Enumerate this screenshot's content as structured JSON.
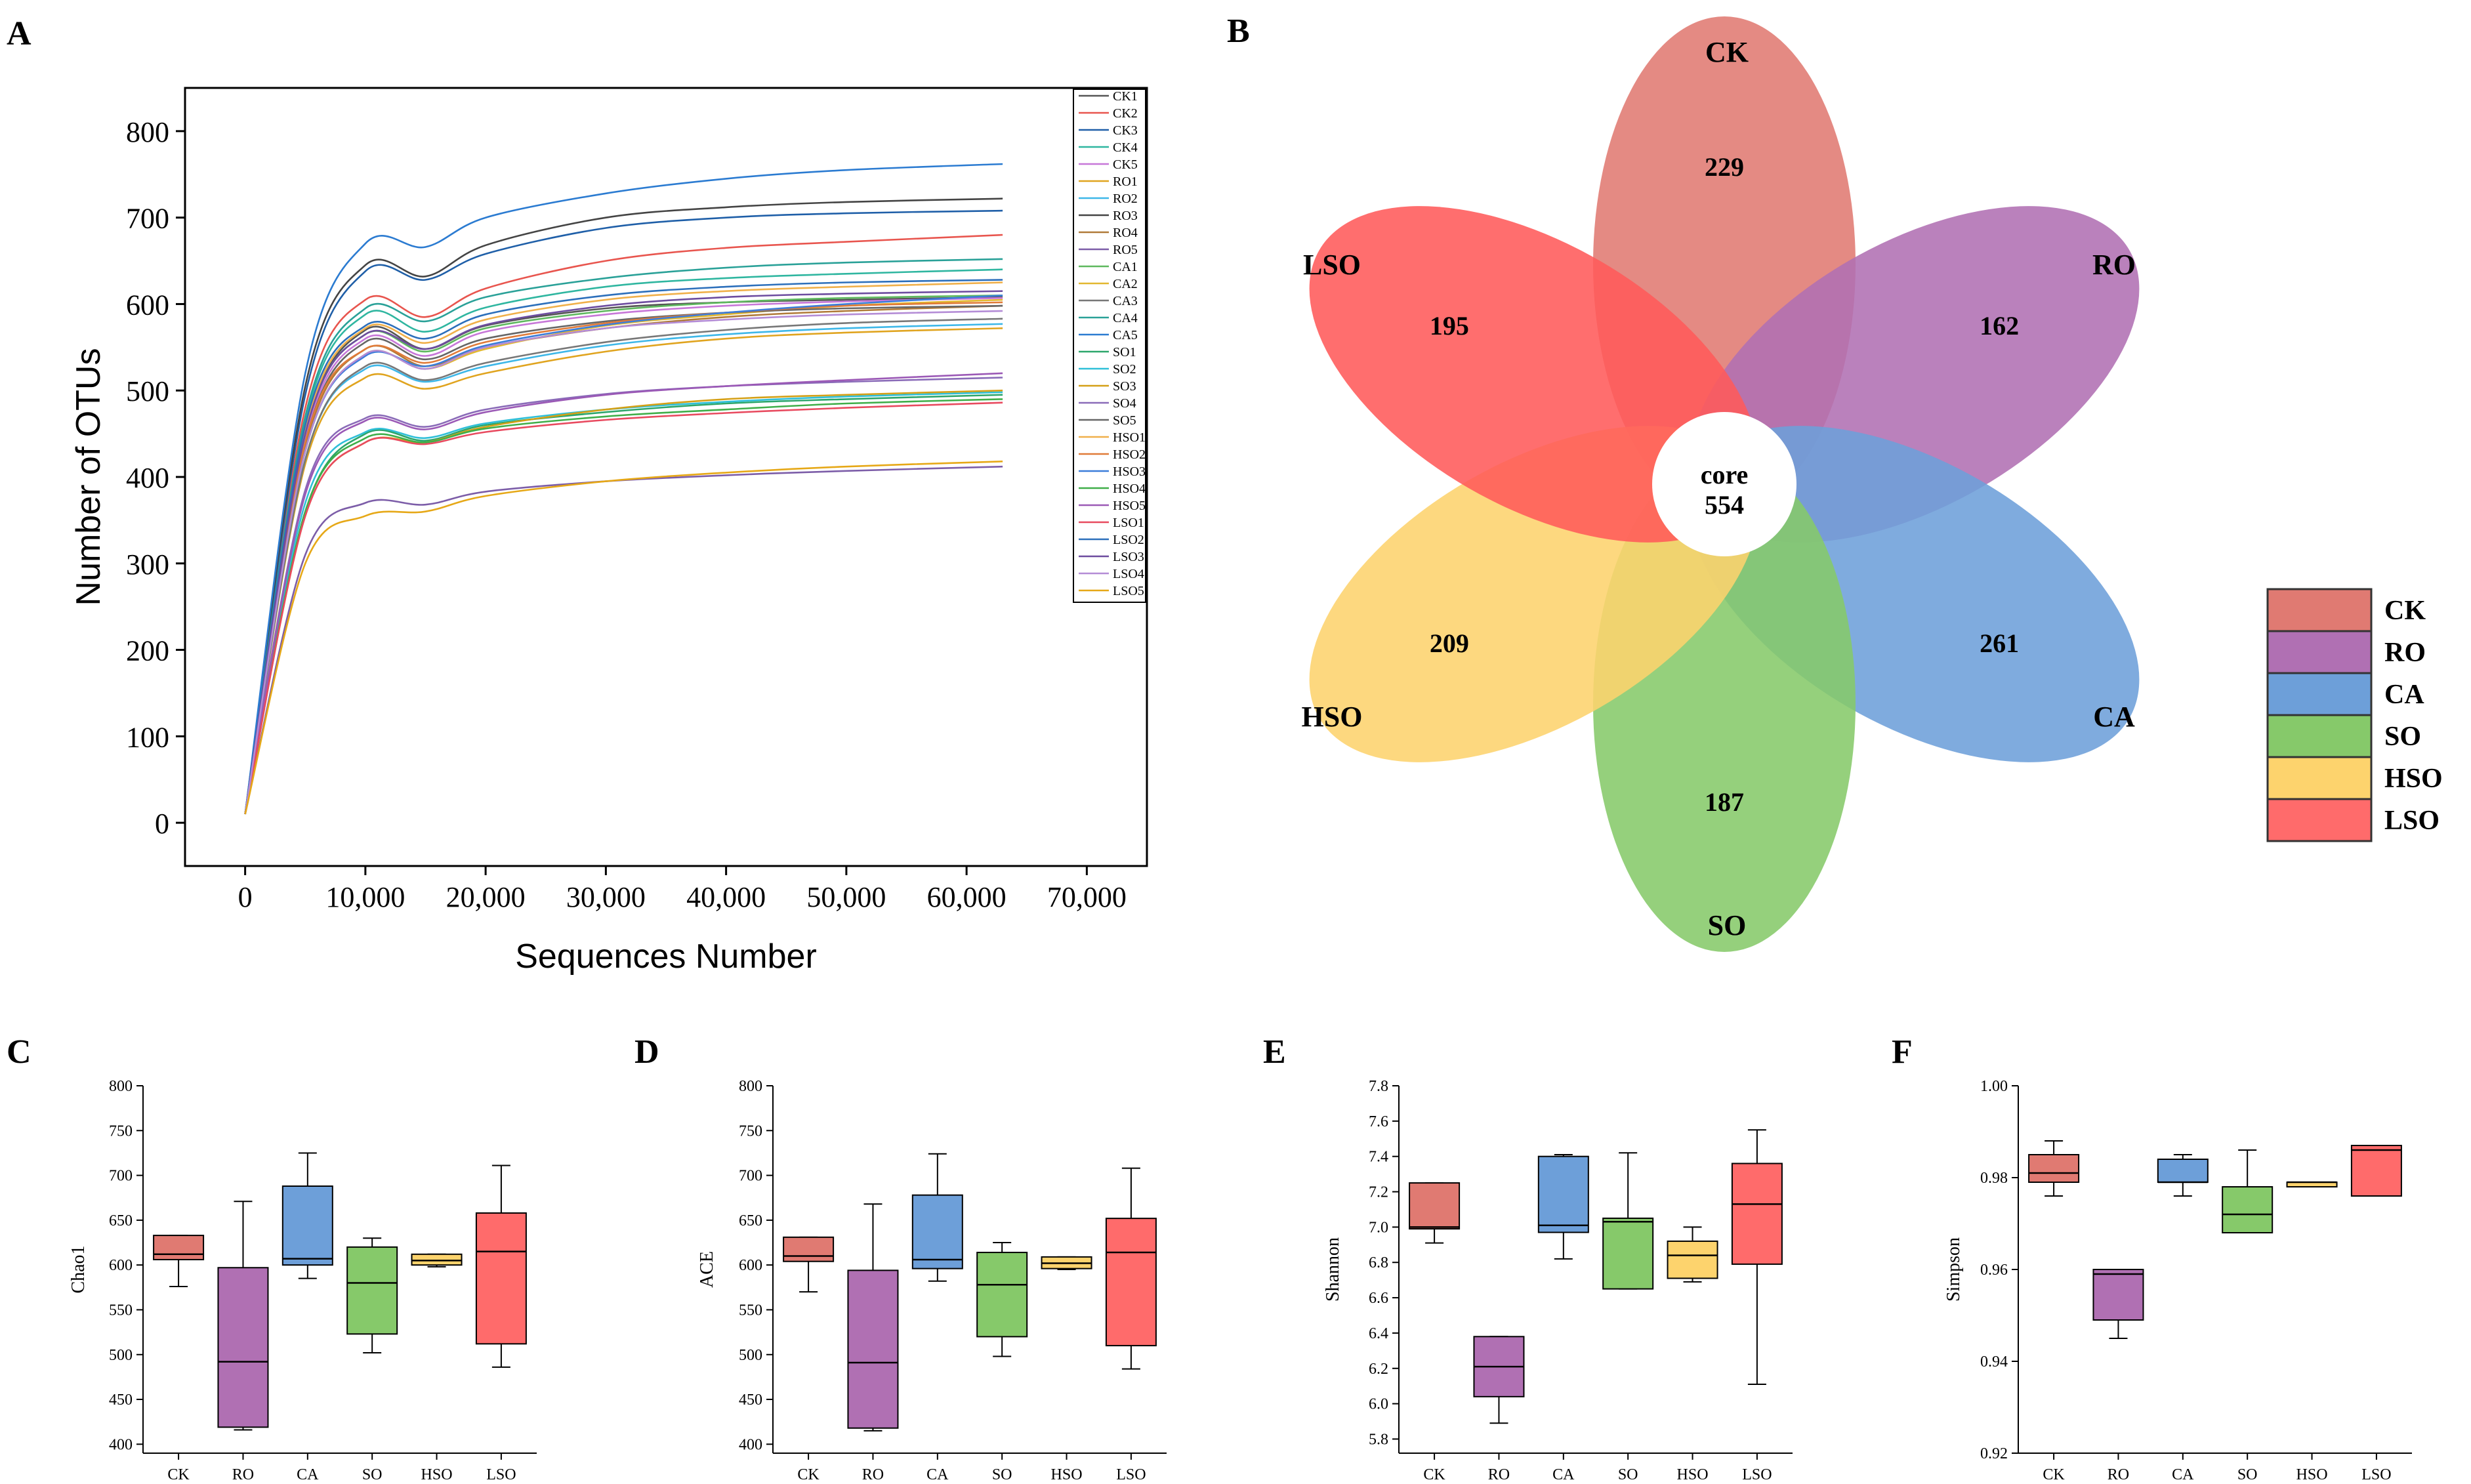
{
  "figure": {
    "panel_labels": [
      "A",
      "B",
      "C",
      "D",
      "E",
      "F"
    ]
  },
  "chart_data": [
    {
      "panel": "A",
      "type": "line",
      "title": "",
      "xlabel": "Sequences Number",
      "ylabel": "Number of OTUs",
      "xlim": [
        -5000,
        75000
      ],
      "ylim": [
        -50,
        850
      ],
      "xticks": [
        0,
        10000,
        20000,
        30000,
        40000,
        50000,
        60000,
        70000
      ],
      "xtick_labels": [
        "0",
        "10,000",
        "20,000",
        "30,000",
        "40,000",
        "50,000",
        "60,000",
        "70,000"
      ],
      "yticks": [
        0,
        100,
        200,
        300,
        400,
        500,
        600,
        700,
        800
      ],
      "ytick_labels": [
        "0",
        "100",
        "200",
        "300",
        "400",
        "500",
        "600",
        "700",
        "800"
      ],
      "legend_position": "top-right",
      "x": [
        0,
        5000,
        10000,
        15000,
        20000,
        30000,
        40000,
        50000,
        63000
      ],
      "series": [
        {
          "name": "CK1",
          "color": "#555555",
          "values": [
            10,
            450,
            570,
            548,
            575,
            595,
            602,
            605,
            608
          ]
        },
        {
          "name": "CK2",
          "color": "#e8554e",
          "values": [
            10,
            480,
            605,
            585,
            618,
            650,
            665,
            672,
            680
          ]
        },
        {
          "name": "CK3",
          "color": "#1f5fa8",
          "values": [
            10,
            495,
            638,
            628,
            658,
            688,
            700,
            705,
            708
          ]
        },
        {
          "name": "CK4",
          "color": "#2fb6a0",
          "values": [
            10,
            465,
            588,
            568,
            596,
            620,
            630,
            635,
            640
          ]
        },
        {
          "name": "CK5",
          "color": "#c777d8",
          "values": [
            10,
            445,
            560,
            540,
            568,
            588,
            598,
            603,
            607
          ]
        },
        {
          "name": "RO1",
          "color": "#e0a41f",
          "values": [
            10,
            415,
            515,
            502,
            520,
            545,
            560,
            567,
            572
          ]
        },
        {
          "name": "RO2",
          "color": "#3db7e8",
          "values": [
            10,
            420,
            525,
            510,
            528,
            552,
            565,
            572,
            577
          ]
        },
        {
          "name": "RO3",
          "color": "#444444",
          "values": [
            10,
            505,
            645,
            632,
            668,
            700,
            712,
            718,
            722
          ]
        },
        {
          "name": "RO4",
          "color": "#b07a38",
          "values": [
            10,
            435,
            548,
            528,
            550,
            572,
            585,
            592,
            598
          ]
        },
        {
          "name": "RO5",
          "color": "#7c5da8",
          "values": [
            10,
            310,
            370,
            368,
            383,
            395,
            402,
            407,
            412
          ]
        },
        {
          "name": "CA1",
          "color": "#5eb85e",
          "values": [
            10,
            450,
            565,
            545,
            572,
            592,
            602,
            607,
            610
          ]
        },
        {
          "name": "CA2",
          "color": "#e2b830",
          "values": [
            10,
            430,
            542,
            525,
            548,
            575,
            588,
            598,
            605
          ]
        },
        {
          "name": "CA3",
          "color": "#777777",
          "values": [
            10,
            420,
            528,
            512,
            532,
            556,
            570,
            578,
            583
          ]
        },
        {
          "name": "CA4",
          "color": "#2aa198",
          "values": [
            10,
            470,
            595,
            580,
            608,
            630,
            642,
            648,
            652
          ]
        },
        {
          "name": "CA5",
          "color": "#2b7bd1",
          "values": [
            10,
            520,
            670,
            666,
            700,
            728,
            745,
            755,
            762
          ]
        },
        {
          "name": "SO1",
          "color": "#2ca66b",
          "values": [
            10,
            360,
            450,
            442,
            460,
            475,
            485,
            490,
            495
          ]
        },
        {
          "name": "SO2",
          "color": "#2fbfd8",
          "values": [
            10,
            370,
            452,
            445,
            462,
            478,
            487,
            493,
            498
          ]
        },
        {
          "name": "SO3",
          "color": "#d4a017",
          "values": [
            10,
            355,
            440,
            440,
            458,
            478,
            490,
            495,
            500
          ]
        },
        {
          "name": "SO4",
          "color": "#8a6bb8",
          "values": [
            10,
            385,
            468,
            458,
            478,
            496,
            505,
            510,
            515
          ]
        },
        {
          "name": "SO5",
          "color": "#666666",
          "values": [
            10,
            440,
            556,
            536,
            560,
            580,
            590,
            595,
            598
          ]
        },
        {
          "name": "HSO1",
          "color": "#f0b04a",
          "values": [
            10,
            455,
            572,
            555,
            582,
            605,
            615,
            620,
            625
          ]
        },
        {
          "name": "HSO2",
          "color": "#e07b39",
          "values": [
            10,
            440,
            548,
            532,
            556,
            578,
            590,
            598,
            602
          ]
        },
        {
          "name": "HSO3",
          "color": "#3c7dd9",
          "values": [
            10,
            430,
            540,
            528,
            552,
            576,
            590,
            600,
            610
          ]
        },
        {
          "name": "HSO4",
          "color": "#3fae49",
          "values": [
            10,
            360,
            445,
            440,
            456,
            470,
            478,
            485,
            490
          ]
        },
        {
          "name": "HSO5",
          "color": "#9b59b6",
          "values": [
            10,
            380,
            465,
            455,
            475,
            495,
            505,
            512,
            520
          ]
        },
        {
          "name": "LSO1",
          "color": "#e84a5f",
          "values": [
            10,
            355,
            440,
            438,
            452,
            466,
            474,
            480,
            486
          ]
        },
        {
          "name": "LSO2",
          "color": "#2c6fbb",
          "values": [
            10,
            460,
            575,
            560,
            588,
            610,
            620,
            625,
            628
          ]
        },
        {
          "name": "LSO3",
          "color": "#6d4c9f",
          "values": [
            10,
            450,
            565,
            548,
            576,
            598,
            608,
            612,
            615
          ]
        },
        {
          "name": "LSO4",
          "color": "#b48cd6",
          "values": [
            10,
            430,
            542,
            525,
            550,
            572,
            582,
            588,
            592
          ]
        },
        {
          "name": "LSO5",
          "color": "#e6a817",
          "values": [
            10,
            300,
            355,
            360,
            378,
            395,
            405,
            412,
            418
          ]
        }
      ]
    },
    {
      "panel": "B",
      "type": "venn-flower",
      "title": "",
      "core_label": "core",
      "core_value": 554,
      "petals": [
        {
          "name": "CK",
          "value": 229,
          "color": "#e07a72"
        },
        {
          "name": "RO",
          "value": 162,
          "color": "#b070b3"
        },
        {
          "name": "CA",
          "value": 261,
          "color": "#6d9fd9"
        },
        {
          "name": "SO",
          "value": 187,
          "color": "#86c96a"
        },
        {
          "name": "HSO",
          "value": 209,
          "color": "#fdd36d"
        },
        {
          "name": "LSO",
          "value": 195,
          "color": "#ff5a5a"
        }
      ],
      "legend_position": "right",
      "legend": [
        {
          "name": "CK",
          "color": "#e07a72"
        },
        {
          "name": "RO",
          "color": "#b070b3"
        },
        {
          "name": "CA",
          "color": "#6d9fd9"
        },
        {
          "name": "SO",
          "color": "#86c96a"
        },
        {
          "name": "HSO",
          "color": "#fdd36d"
        },
        {
          "name": "LSO",
          "color": "#ff6b6b"
        }
      ]
    },
    {
      "panel": "C",
      "type": "box",
      "ylabel": "Chao1",
      "ylim": [
        390,
        800
      ],
      "yticks": [
        400,
        450,
        500,
        550,
        600,
        650,
        700,
        750,
        800
      ],
      "ytick_labels": [
        "400",
        "450",
        "500",
        "550",
        "600",
        "650",
        "700",
        "750",
        "800"
      ],
      "categories": [
        "CK",
        "RO",
        "CA",
        "SO",
        "HSO",
        "LSO"
      ],
      "colors": [
        "#e07a72",
        "#b070b3",
        "#6d9fd9",
        "#86c96a",
        "#fdd36d",
        "#ff6b6b"
      ],
      "boxes": [
        {
          "min": 576,
          "q1": 606,
          "median": 612,
          "q3": 633,
          "max": 633
        },
        {
          "min": 416,
          "q1": 419,
          "median": 492,
          "q3": 597,
          "max": 671
        },
        {
          "min": 585,
          "q1": 600,
          "median": 607,
          "q3": 688,
          "max": 725
        },
        {
          "min": 502,
          "q1": 523,
          "median": 580,
          "q3": 620,
          "max": 630
        },
        {
          "min": 598,
          "q1": 600,
          "median": 605,
          "q3": 612,
          "max": 612
        },
        {
          "min": 486,
          "q1": 512,
          "median": 615,
          "q3": 658,
          "max": 711
        }
      ]
    },
    {
      "panel": "D",
      "type": "box",
      "ylabel": "ACE",
      "ylim": [
        390,
        800
      ],
      "yticks": [
        400,
        450,
        500,
        550,
        600,
        650,
        700,
        750,
        800
      ],
      "ytick_labels": [
        "400",
        "450",
        "500",
        "550",
        "600",
        "650",
        "700",
        "750",
        "800"
      ],
      "categories": [
        "CK",
        "RO",
        "CA",
        "SO",
        "HSO",
        "LSO"
      ],
      "colors": [
        "#e07a72",
        "#b070b3",
        "#6d9fd9",
        "#86c96a",
        "#fdd36d",
        "#ff6b6b"
      ],
      "boxes": [
        {
          "min": 570,
          "q1": 604,
          "median": 610,
          "q3": 631,
          "max": 631
        },
        {
          "min": 415,
          "q1": 418,
          "median": 491,
          "q3": 594,
          "max": 668
        },
        {
          "min": 582,
          "q1": 596,
          "median": 606,
          "q3": 678,
          "max": 724
        },
        {
          "min": 498,
          "q1": 520,
          "median": 578,
          "q3": 614,
          "max": 625
        },
        {
          "min": 595,
          "q1": 596,
          "median": 602,
          "q3": 609,
          "max": 609
        },
        {
          "min": 484,
          "q1": 510,
          "median": 614,
          "q3": 652,
          "max": 708
        }
      ]
    },
    {
      "panel": "E",
      "type": "box",
      "ylabel": "Shannon",
      "ylim": [
        5.72,
        7.8
      ],
      "yticks": [
        5.8,
        6.0,
        6.2,
        6.4,
        6.6,
        6.8,
        7.0,
        7.2,
        7.4,
        7.6,
        7.8
      ],
      "ytick_labels": [
        "5.8",
        "6.0",
        "6.2",
        "6.4",
        "6.6",
        "6.8",
        "7.0",
        "7.2",
        "7.4",
        "7.6",
        "7.8"
      ],
      "categories": [
        "CK",
        "RO",
        "CA",
        "SO",
        "HSO",
        "LSO"
      ],
      "colors": [
        "#e07a72",
        "#b070b3",
        "#6d9fd9",
        "#86c96a",
        "#fdd36d",
        "#ff6b6b"
      ],
      "boxes": [
        {
          "min": 6.91,
          "q1": 6.99,
          "median": 7.0,
          "q3": 7.25,
          "max": 7.25
        },
        {
          "min": 5.89,
          "q1": 6.04,
          "median": 6.21,
          "q3": 6.38,
          "max": 6.38
        },
        {
          "min": 6.82,
          "q1": 6.97,
          "median": 7.01,
          "q3": 7.4,
          "max": 7.41
        },
        {
          "min": 6.65,
          "q1": 6.65,
          "median": 7.03,
          "q3": 7.05,
          "max": 7.42
        },
        {
          "min": 6.69,
          "q1": 6.71,
          "median": 6.84,
          "q3": 6.92,
          "max": 7.0
        },
        {
          "min": 6.11,
          "q1": 6.79,
          "median": 7.13,
          "q3": 7.36,
          "max": 7.55
        }
      ]
    },
    {
      "panel": "F",
      "type": "box",
      "ylabel": "Simpson",
      "ylim": [
        0.92,
        1.0
      ],
      "yticks": [
        0.92,
        0.94,
        0.96,
        0.98,
        1.0
      ],
      "ytick_labels": [
        "0.92",
        "0.94",
        "0.96",
        "0.98",
        "1.00"
      ],
      "categories": [
        "CK",
        "RO",
        "CA",
        "SO",
        "HSO",
        "LSO"
      ],
      "colors": [
        "#e07a72",
        "#b070b3",
        "#6d9fd9",
        "#86c96a",
        "#fdd36d",
        "#ff6b6b"
      ],
      "boxes": [
        {
          "min": 0.976,
          "q1": 0.979,
          "median": 0.981,
          "q3": 0.985,
          "max": 0.988
        },
        {
          "min": 0.945,
          "q1": 0.949,
          "median": 0.959,
          "q3": 0.96,
          "max": 0.96
        },
        {
          "min": 0.976,
          "q1": 0.979,
          "median": 0.979,
          "q3": 0.984,
          "max": 0.985
        },
        {
          "min": 0.968,
          "q1": 0.968,
          "median": 0.972,
          "q3": 0.978,
          "max": 0.986
        },
        {
          "min": 0.978,
          "q1": 0.978,
          "median": 0.979,
          "q3": 0.979,
          "max": 0.979
        },
        {
          "min": 0.976,
          "q1": 0.976,
          "median": 0.986,
          "q3": 0.987,
          "max": 0.987
        }
      ]
    }
  ]
}
